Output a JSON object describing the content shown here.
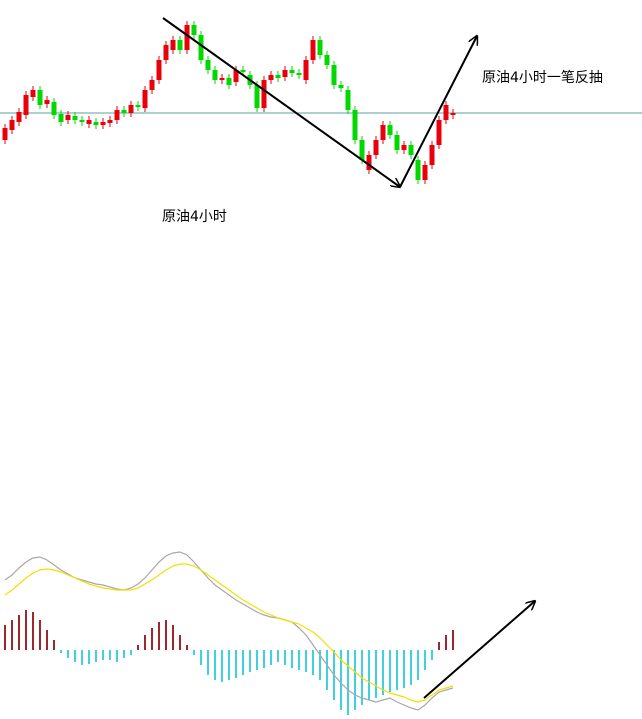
{
  "chart_data": [
    {
      "type": "candlestick",
      "annotations": [
        "原油4小时一笔反抽",
        "原油4小时"
      ],
      "open": [
        60,
        70,
        78,
        85,
        103,
        110,
        96,
        98,
        86,
        80,
        84,
        80,
        76,
        78,
        75,
        77,
        80,
        90,
        87,
        95,
        92,
        110,
        120,
        140,
        150,
        160,
        150,
        175,
        165,
        140,
        130,
        120,
        122,
        118,
        130,
        125,
        115,
        92,
        120,
        125,
        123,
        130,
        127,
        120,
        140,
        160,
        145,
        135,
        115,
        110,
        90,
        60,
        30,
        45,
        60,
        75,
        65,
        50,
        55,
        40,
        20,
        35,
        55,
        80,
        85
      ],
      "high": [
        76,
        84,
        92,
        109,
        114,
        114,
        104,
        102,
        90,
        89,
        88,
        84,
        84,
        82,
        82,
        84,
        94,
        94,
        99,
        99,
        114,
        124,
        144,
        159,
        164,
        164,
        179,
        179,
        169,
        144,
        134,
        126,
        126,
        134,
        134,
        129,
        119,
        124,
        129,
        129,
        134,
        134,
        131,
        144,
        164,
        164,
        149,
        139,
        119,
        114,
        94,
        64,
        49,
        64,
        79,
        79,
        69,
        59,
        59,
        44,
        39,
        59,
        84,
        99,
        91
      ],
      "low": [
        56,
        66,
        74,
        81,
        99,
        91,
        92,
        81,
        74,
        76,
        76,
        74,
        72,
        71,
        71,
        73,
        76,
        83,
        83,
        89,
        88,
        106,
        116,
        136,
        146,
        146,
        146,
        161,
        136,
        126,
        116,
        116,
        111,
        114,
        124,
        111,
        88,
        88,
        116,
        118,
        119,
        123,
        121,
        116,
        136,
        141,
        131,
        111,
        108,
        86,
        56,
        36,
        26,
        41,
        56,
        61,
        46,
        46,
        41,
        16,
        16,
        31,
        51,
        76,
        81
      ],
      "close": [
        72,
        80,
        88,
        105,
        110,
        95,
        100,
        85,
        78,
        85,
        80,
        78,
        80,
        75,
        78,
        80,
        90,
        87,
        95,
        93,
        110,
        120,
        140,
        155,
        160,
        150,
        175,
        165,
        140,
        130,
        120,
        122,
        115,
        130,
        128,
        115,
        92,
        120,
        125,
        122,
        130,
        127,
        125,
        140,
        160,
        145,
        135,
        115,
        112,
        90,
        60,
        40,
        45,
        60,
        75,
        65,
        50,
        55,
        45,
        20,
        35,
        55,
        80,
        95,
        87
      ],
      "up_color": "#e8000b",
      "down_color": "#00d800",
      "reference_line": 87,
      "reference_color": "#5aa0a0",
      "ylim": [
        0,
        200
      ]
    },
    {
      "type": "macd",
      "histogram": [
        25,
        30,
        35,
        40,
        38,
        30,
        20,
        10,
        -3,
        -8,
        -12,
        -15,
        -14,
        -12,
        -10,
        -10,
        -12,
        -8,
        -5,
        5,
        15,
        22,
        28,
        30,
        25,
        15,
        5,
        -5,
        -15,
        -25,
        -30,
        -32,
        -30,
        -28,
        -25,
        -22,
        -20,
        -18,
        -15,
        -12,
        -15,
        -18,
        -20,
        -22,
        -25,
        -30,
        -40,
        -50,
        -60,
        -65,
        -60,
        -55,
        -50,
        -48,
        -45,
        -42,
        -40,
        -38,
        -35,
        -30,
        -20,
        -10,
        8,
        15,
        20
      ],
      "positive_color": "#a0282c",
      "negative_color": "#40d0e0",
      "series": [
        {
          "color": "#a8a8a8",
          "values": [
            70,
            75,
            82,
            88,
            92,
            93,
            90,
            85,
            80,
            76,
            72,
            70,
            68,
            66,
            65,
            63,
            61,
            60,
            62,
            66,
            72,
            80,
            88,
            94,
            97,
            98,
            95,
            88,
            80,
            72,
            65,
            60,
            55,
            50,
            46,
            42,
            38,
            35,
            33,
            32,
            30,
            28,
            22,
            15,
            5,
            -5,
            -15,
            -25,
            -33,
            -40,
            -45,
            -48,
            -50,
            -52,
            -50,
            -48,
            -52,
            -55,
            -58,
            -60,
            -55,
            -48,
            -42,
            -40,
            -38
          ]
        },
        {
          "color": "#f0e000",
          "values": [
            55,
            60,
            66,
            72,
            77,
            80,
            81,
            80,
            78,
            75,
            72,
            69,
            66,
            64,
            62,
            61,
            60,
            60,
            60,
            62,
            66,
            70,
            75,
            80,
            84,
            86,
            86,
            84,
            80,
            75,
            70,
            65,
            60,
            55,
            50,
            46,
            42,
            38,
            35,
            32,
            30,
            28,
            26,
            22,
            18,
            12,
            5,
            -2,
            -10,
            -16,
            -22,
            -28,
            -32,
            -36,
            -40,
            -43,
            -45,
            -47,
            -50,
            -52,
            -50,
            -45,
            -40,
            -38,
            -36
          ]
        }
      ],
      "ylim": [
        -69,
        100
      ]
    }
  ]
}
